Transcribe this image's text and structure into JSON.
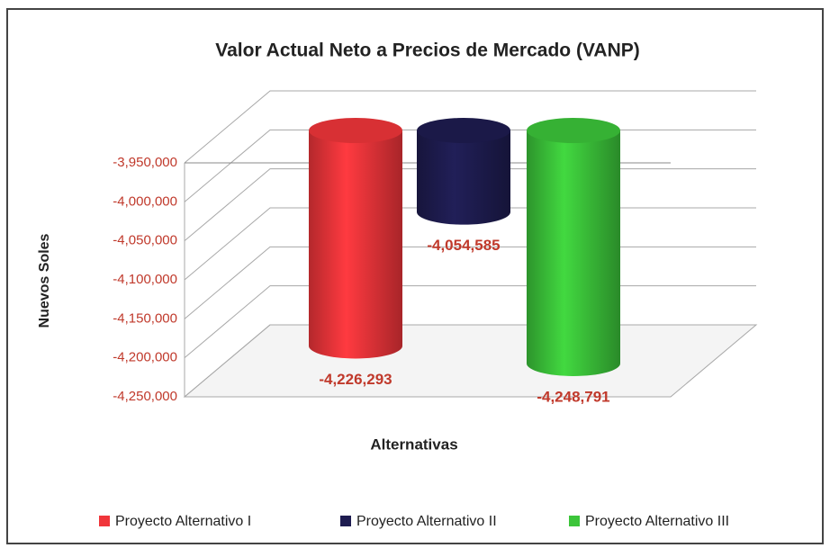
{
  "chart_data": {
    "type": "bar3d_cylinder",
    "title": "Valor Actual Neto a Precios de Mercado (VANP)",
    "y_label": "Nuevos Soles",
    "x_label": "Alternativas",
    "series": [
      {
        "name": "Proyecto Alternativo I",
        "color": "#f0353a",
        "values": [
          -4226293
        ],
        "value_labels": [
          "-4,226,293"
        ]
      },
      {
        "name": "Proyecto Alternativo II",
        "color": "#1e1c50",
        "values": [
          -4054585
        ],
        "value_labels": [
          "-4,054,585"
        ]
      },
      {
        "name": "Proyecto Alternativo III",
        "color": "#3cc53a",
        "values": [
          -4248791
        ],
        "value_labels": [
          "-4,248,791"
        ]
      }
    ],
    "ylim": [
      -4250000,
      -3950000
    ],
    "yticks": [
      {
        "value": -4250000,
        "label": "-4,250,000"
      },
      {
        "value": -4200000,
        "label": "-4,200,000"
      },
      {
        "value": -4150000,
        "label": "-4,150,000"
      },
      {
        "value": -4100000,
        "label": "-4,100,000"
      },
      {
        "value": -4050000,
        "label": "-4,050,000"
      },
      {
        "value": -4000000,
        "label": "-4,000,000"
      },
      {
        "value": -3950000,
        "label": "-3,950,000"
      }
    ],
    "grid": true,
    "legend": "bottom"
  }
}
